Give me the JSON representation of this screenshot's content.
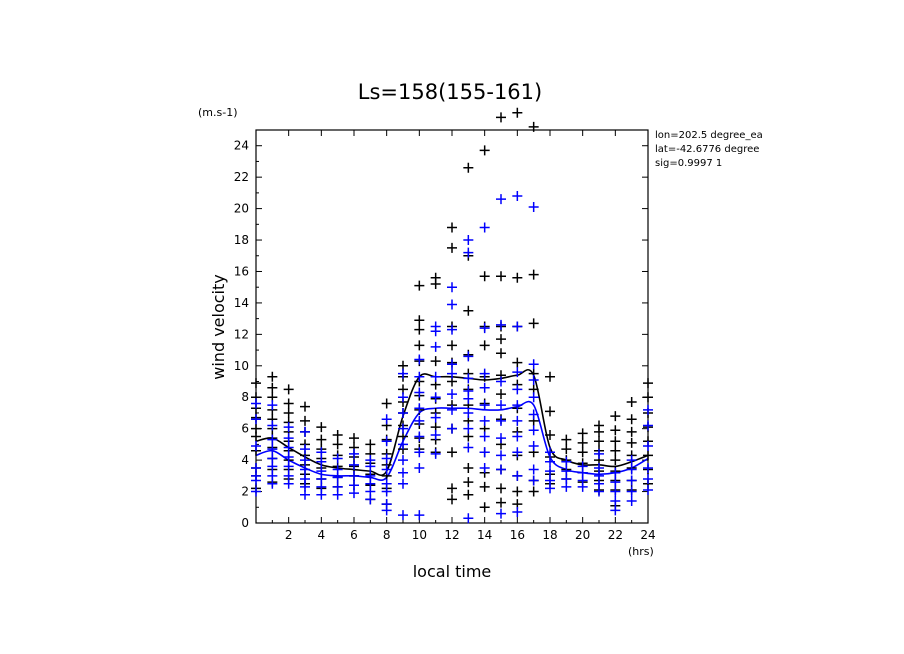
{
  "chart_data": {
    "type": "scatter",
    "title": "Ls=158(155-161)",
    "xlabel": "local time",
    "ylabel": "wind velocity",
    "x_unit": "(hrs)",
    "y_unit": "(m.s-1)",
    "xlim": [
      0,
      24
    ],
    "ylim": [
      0,
      25
    ],
    "x_ticks": [
      2,
      4,
      6,
      8,
      10,
      12,
      14,
      16,
      18,
      20,
      22,
      24
    ],
    "y_ticks": [
      0,
      2,
      4,
      6,
      8,
      10,
      12,
      14,
      16,
      18,
      20,
      22,
      24
    ],
    "info_lines": [
      "lon=202.5 degree_ea",
      "lat=-42.6776 degree",
      "sig=0.9997 1"
    ],
    "series": [
      {
        "name": "black points",
        "color": "#000000",
        "kind": "points",
        "points": {
          "0": [
            2.2,
            3,
            3.5,
            4.6,
            5.5,
            6,
            6.7,
            7.3,
            8,
            8.9
          ],
          "1": [
            2.6,
            3.4,
            4.1,
            4.8,
            5.4,
            6,
            6.6,
            7.2,
            8,
            8.6,
            9.3
          ],
          "2": [
            2.8,
            3.4,
            4,
            4.6,
            5.2,
            5.8,
            6.4,
            7,
            7.6,
            8.5
          ],
          "3": [
            2.5,
            3.1,
            3.7,
            4.3,
            5,
            5.8,
            6.5,
            7.4
          ],
          "4": [
            2.2,
            2.8,
            3.5,
            4.1,
            4.7,
            5.3,
            6.1
          ],
          "5": [
            2.3,
            2.9,
            3.6,
            4.3,
            5,
            5.6
          ],
          "6": [
            2.4,
            3,
            3.6,
            4.2,
            4.8,
            5.4
          ],
          "7": [
            1.5,
            2.4,
            3.1,
            3.8,
            4.4,
            5
          ],
          "8": [
            1.2,
            2.2,
            3,
            3.7,
            4.4,
            5.3,
            6.2,
            7.6
          ],
          "9": [
            4.7,
            5.5,
            6.2,
            7,
            7.7,
            8.5,
            9.3,
            10
          ],
          "10": [
            4.7,
            5.4,
            6.3,
            7.2,
            8.1,
            9,
            10.3,
            11.3,
            12.3,
            12.9,
            15.1
          ],
          "11": [
            4.5,
            5.3,
            6.1,
            7,
            7.9,
            8.8,
            10.3,
            15.2,
            15.6
          ],
          "12": [
            1.5,
            2.2,
            4.5,
            6,
            7.5,
            9,
            10.2,
            11.3,
            12.5,
            17.5,
            18.8
          ],
          "13": [
            1.8,
            2.6,
            3.5,
            5.5,
            6.5,
            7.5,
            8.5,
            9.5,
            10.7,
            13.5,
            17,
            22.6
          ],
          "14": [
            1,
            2.3,
            3.2,
            4.5,
            6,
            7.6,
            9.3,
            11.3,
            12.5,
            15.7,
            23.7
          ],
          "15": [
            1.3,
            2.2,
            3.4,
            5,
            6.6,
            8.2,
            9.4,
            10.8,
            11.7,
            12.5,
            15.7,
            25.8
          ],
          "16": [
            1.2,
            2,
            3,
            4.3,
            5.8,
            7.3,
            8.8,
            10.2,
            12.5,
            15.6,
            26.1
          ],
          "17": [
            2,
            2.7,
            4.5,
            6.5,
            8.5,
            9.5,
            12.7,
            15.8,
            25.2
          ],
          "18": [
            2.5,
            3.1,
            4.2,
            5.6,
            7.1,
            9.3
          ],
          "19": [
            2.8,
            3.4,
            4,
            4.7,
            5.3
          ],
          "20": [
            2.6,
            3.2,
            3.8,
            4.5,
            5.1,
            5.7
          ],
          "21": [
            2.1,
            2.7,
            3.3,
            4,
            4.6,
            5.2,
            5.8,
            6.2
          ],
          "22": [
            1.1,
            2.1,
            2.7,
            3.3,
            4,
            4.6,
            5.2,
            5.9,
            6.8
          ],
          "23": [
            2.1,
            2.7,
            3.5,
            4.3,
            5.1,
            5.8,
            6.6,
            7.7
          ],
          "24": [
            2.5,
            3.4,
            4.3,
            5.2,
            6.1,
            7,
            8,
            8.9
          ]
        }
      },
      {
        "name": "blue points",
        "color": "#0000ff",
        "kind": "points",
        "points": {
          "0": [
            2,
            2.7,
            3,
            3.5,
            4.9,
            6.6,
            7.6
          ],
          "1": [
            2.5,
            3,
            3.6,
            4.1,
            4.7,
            5.3,
            6.2,
            7.5
          ],
          "2": [
            2.5,
            3,
            3.6,
            4.2,
            4.8,
            5.4,
            6.1
          ],
          "3": [
            1.8,
            2.3,
            2.8,
            3.4,
            4,
            4.7,
            5.8
          ],
          "4": [
            1.8,
            2.3,
            2.8,
            3.3,
            3.9,
            4.5
          ],
          "5": [
            1.8,
            2.3,
            2.9,
            3.4,
            4.1
          ],
          "6": [
            1.9,
            2.4,
            3,
            3.7,
            4.4
          ],
          "7": [
            1.5,
            2,
            2.5,
            3,
            3.6,
            4
          ],
          "8": [
            0.8,
            1.2,
            2,
            2.5,
            3.4,
            4.1,
            5.2,
            6.6
          ],
          "9": [
            0.5,
            2.5,
            3.2,
            4,
            5,
            6,
            7,
            8,
            9.5
          ],
          "10": [
            0.5,
            3.5,
            4.5,
            5.5,
            6.5,
            7.3,
            8.3,
            9.3,
            10.4
          ],
          "11": [
            4.4,
            5.6,
            6.7,
            8,
            9.3,
            11.2,
            12.2,
            12.5
          ],
          "12": [
            6,
            7.2,
            8.2,
            9.5,
            10.1,
            12.3,
            13.9,
            15
          ],
          "13": [
            0.3,
            4.8,
            6,
            7,
            7.9,
            8.4,
            9.2,
            10.6,
            17.2,
            18
          ],
          "14": [
            3.5,
            4.5,
            5.5,
            6.5,
            7.5,
            8.6,
            9.5,
            12.4,
            18.8
          ],
          "15": [
            0.6,
            3.4,
            4.3,
            5.4,
            6.5,
            7.5,
            9,
            12.6,
            20.6
          ],
          "16": [
            0.7,
            3,
            4.5,
            5.5,
            6.5,
            7.5,
            8.5,
            9.6,
            12.5,
            20.8
          ],
          "17": [
            2.7,
            3.4,
            4.9,
            5.9,
            6.9,
            8,
            9.1,
            10.1,
            20.1
          ],
          "18": [
            2.2,
            2.7,
            3.3,
            3.9,
            4.5
          ],
          "19": [
            2.3,
            2.8,
            3.3,
            3.9
          ],
          "20": [
            2.3,
            2.7,
            3.2,
            3.6
          ],
          "21": [
            2,
            2.5,
            3,
            3.5,
            4.4
          ],
          "22": [
            0.8,
            1.4,
            2,
            2.6,
            3.2
          ],
          "23": [
            1.4,
            2,
            2.7,
            3.4,
            4
          ],
          "24": [
            2.1,
            2.8,
            3.5,
            4.9,
            6.2,
            7.2
          ]
        }
      },
      {
        "name": "black mean",
        "color": "#000000",
        "kind": "line",
        "x": [
          0,
          1,
          2,
          3,
          4,
          5,
          6,
          7,
          8,
          9,
          10,
          11,
          12,
          13,
          14,
          15,
          16,
          17,
          18,
          19,
          20,
          21,
          22,
          23,
          24
        ],
        "y": [
          5.2,
          5.4,
          4.8,
          4.2,
          3.7,
          3.5,
          3.4,
          3.3,
          3.3,
          6.8,
          9.3,
          9.3,
          9.3,
          9.2,
          9.1,
          9.2,
          9.4,
          9.4,
          4.8,
          4.0,
          3.7,
          3.7,
          3.6,
          3.9,
          4.3
        ]
      },
      {
        "name": "blue mean",
        "color": "#0000ff",
        "kind": "line",
        "x": [
          0,
          1,
          2,
          3,
          4,
          5,
          6,
          7,
          8,
          9,
          10,
          11,
          12,
          13,
          14,
          15,
          16,
          17,
          18,
          19,
          20,
          21,
          22,
          23,
          24
        ],
        "y": [
          4.3,
          4.6,
          4.0,
          3.5,
          3.1,
          3.0,
          3.0,
          2.9,
          2.9,
          5.2,
          7.0,
          7.3,
          7.3,
          7.3,
          7.2,
          7.2,
          7.4,
          7.5,
          4.2,
          3.4,
          3.2,
          3.1,
          3.2,
          3.5,
          4.1
        ]
      }
    ]
  }
}
